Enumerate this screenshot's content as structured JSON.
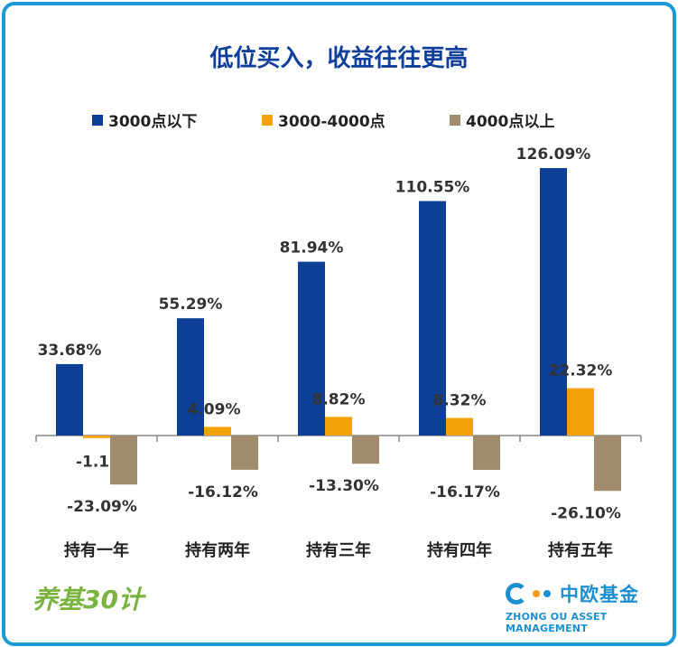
{
  "chart_data": {
    "type": "bar",
    "title": "低位买入，收益往往更高",
    "categories": [
      "持有一年",
      "持有两年",
      "持有三年",
      "持有四年",
      "持有五年"
    ],
    "series": [
      {
        "name": "3000点以下",
        "color": "#0e3f96",
        "values": [
          33.68,
          55.29,
          81.94,
          110.55,
          126.09
        ],
        "labels": [
          "33.68%",
          "55.29%",
          "81.94%",
          "110.55%",
          "126.09%"
        ]
      },
      {
        "name": "3000-4000点",
        "color": "#f4a20c",
        "values": [
          -1.17,
          4.09,
          8.82,
          8.32,
          22.32
        ],
        "labels": [
          "-1.17%",
          "4.09%",
          "8.82%",
          "8.32%",
          "22.32%"
        ]
      },
      {
        "name": "4000点以上",
        "color": "#a08b6c",
        "values": [
          -23.09,
          -16.12,
          -13.3,
          -16.17,
          -26.1
        ],
        "labels": [
          "-23.09%",
          "-16.12%",
          "-13.30%",
          "-16.17%",
          "-26.10%"
        ]
      }
    ],
    "ylim": [
      -30,
      130
    ],
    "legend_position": "top",
    "grid": false
  },
  "brand": {
    "left": "养基30计",
    "right_cn": "中欧基金",
    "right_en": "ZHONG OU ASSET MANAGEMENT"
  }
}
